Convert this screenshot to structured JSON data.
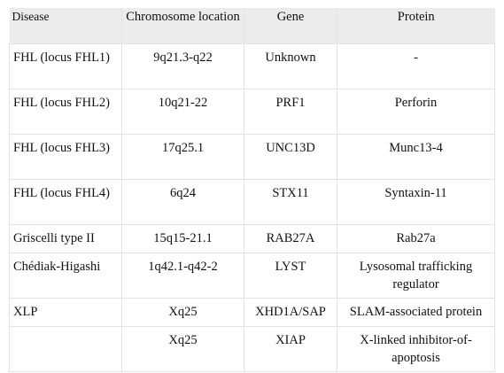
{
  "table": {
    "headers": [
      "Disease",
      "Chromosome location",
      "Gene",
      "Protein"
    ],
    "rows": [
      {
        "disease": "FHL (locus FHL1)",
        "location": "9q21.3-q22",
        "gene": "Unknown",
        "protein": "-"
      },
      {
        "disease": "FHL (locus FHL2)",
        "location": "10q21-22",
        "gene": "PRF1",
        "protein": "Perforin"
      },
      {
        "disease": "FHL (locus FHL3)",
        "location": "17q25.1",
        "gene": "UNC13D",
        "protein": "Munc13-4"
      },
      {
        "disease": "FHL (locus FHL4)",
        "location": "6q24",
        "gene": "STX11",
        "protein": "Syntaxin-11"
      },
      {
        "disease": "Griscelli type II",
        "location": "15q15-21.1",
        "gene": "RAB27A",
        "protein": "Rab27a"
      },
      {
        "disease": "Chédiak-Higashi",
        "location": "1q42.1-q42-2",
        "gene": "LYST",
        "protein": "Lysosomal trafficking regulator"
      },
      {
        "disease": "XLP",
        "location": "Xq25",
        "gene": "XHD1A/SAP",
        "protein": "SLAM-associated protein"
      },
      {
        "disease": "",
        "location": "Xq25",
        "gene": "XIAP",
        "protein": "X-linked inhibitor-of-apoptosis"
      }
    ]
  }
}
